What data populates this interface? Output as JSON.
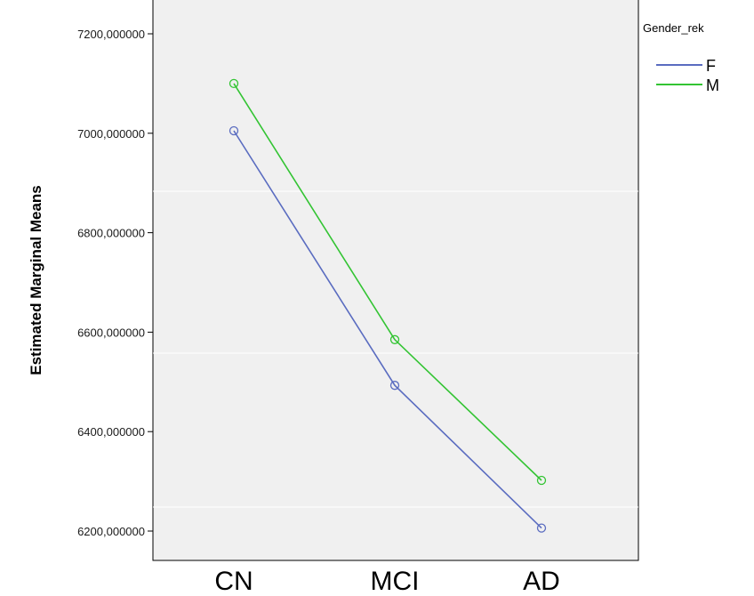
{
  "chart_data": {
    "type": "line",
    "categories": [
      "CN",
      "MCI",
      "AD"
    ],
    "series": [
      {
        "name": "F",
        "values": [
          7005,
          6493,
          6206
        ],
        "color": "#5a6cc0"
      },
      {
        "name": "M",
        "values": [
          7100,
          6585,
          6302
        ],
        "color": "#33c433"
      }
    ],
    "ylabel": "Estimated Marginal Means",
    "xlabel": "",
    "yticks": [
      6200,
      6400,
      6600,
      6800,
      7000,
      7200
    ],
    "ytick_labels": [
      "6200,000000",
      "6400,000000",
      "6600,000000",
      "6800,000000",
      "7000,000000",
      "7200,000000"
    ],
    "ylim": [
      6170,
      7252
    ],
    "legend": {
      "title": "Gender_rek",
      "placement": "top-right"
    },
    "grid": false,
    "plot_background": "#f0f0f0",
    "marker": "open-circle"
  }
}
